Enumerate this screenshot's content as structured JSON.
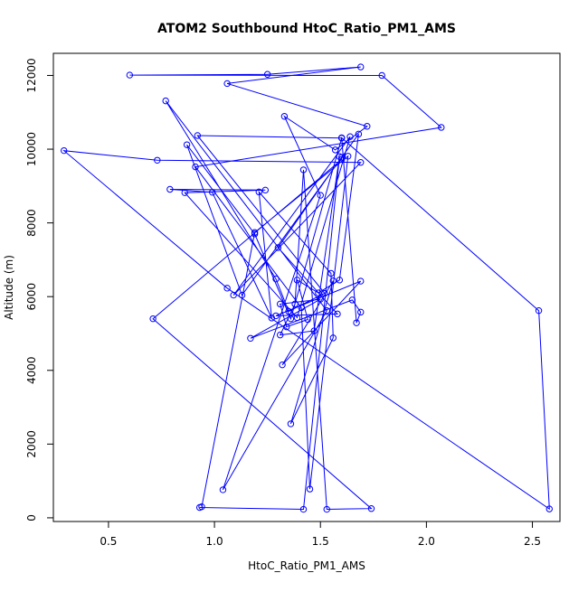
{
  "chart_data": {
    "type": "scatter",
    "title": "ATOM2 Southbound HtoC_Ratio_PM1_AMS",
    "xlabel": "HtoC_Ratio_PM1_AMS",
    "ylabel": "Altitude (m)",
    "xlim": [
      0.24,
      2.63
    ],
    "ylim": [
      -100,
      12600
    ],
    "x_ticks": [
      0.5,
      1.0,
      1.5,
      2.0,
      2.5
    ],
    "x_tick_labels": [
      "0.5",
      "1.0",
      "1.5",
      "2.0",
      "2.5"
    ],
    "y_ticks": [
      0,
      2000,
      4000,
      6000,
      8000,
      10000,
      12000
    ],
    "y_tick_labels": [
      "0",
      "2000",
      "4000",
      "6000",
      "8000",
      "10000",
      "12000"
    ],
    "grid": false,
    "marker": "open-circle",
    "line": true,
    "color": "#0000ff",
    "series": [
      {
        "x": [
          0.93,
          1.42,
          1.59,
          1.47,
          1.31,
          1.38,
          1.42,
          1.53,
          1.74,
          0.71,
          1.6,
          1.6,
          1.3,
          1.58,
          1.29,
          1.69,
          1.32,
          1.56,
          1.36,
          1.56,
          1.55,
          1.21,
          1.27,
          0.99,
          0.79,
          1.24,
          0.86,
          1.39,
          1.64,
          1.09,
          1.69,
          0.73,
          0.29,
          1.06,
          2.58,
          2.53,
          1.6,
          1.67,
          1.69,
          1.65,
          1.17,
          1.5,
          1.31,
          1.34,
          1.44,
          1.39,
          1.49,
          1.59,
          1.68,
          1.13,
          0.87,
          1.19,
          1.36,
          1.6,
          0.92,
          1.52,
          1.35,
          1.29,
          0.77,
          1.53,
          1.04,
          1.5,
          1.33,
          1.57,
          1.72,
          1.06,
          1.69,
          1.25,
          0.6,
          1.79,
          2.07,
          0.91,
          1.41,
          1.45,
          1.63,
          1.19,
          0.94
        ],
        "y": [
          280,
          230,
          9800,
          5070,
          4960,
          5800,
          9440,
          230,
          250,
          5400,
          9720,
          9780,
          7330,
          5530,
          5480,
          6420,
          4150,
          6430,
          2550,
          4880,
          6630,
          8840,
          5420,
          8830,
          8910,
          8890,
          8820,
          5430,
          10340,
          6040,
          9640,
          9700,
          9960,
          6230,
          240,
          5620,
          10310,
          5290,
          5580,
          5910,
          4870,
          5930,
          5800,
          5180,
          5380,
          6450,
          6100,
          6450,
          10410,
          6040,
          10120,
          7700,
          5400,
          10300,
          10370,
          6090,
          5600,
          6480,
          11310,
          5620,
          760,
          8750,
          10890,
          9980,
          10620,
          11780,
          12230,
          12030,
          12010,
          12000,
          10590,
          9520,
          5700,
          780,
          9810,
          7740,
          300
        ]
      }
    ]
  }
}
